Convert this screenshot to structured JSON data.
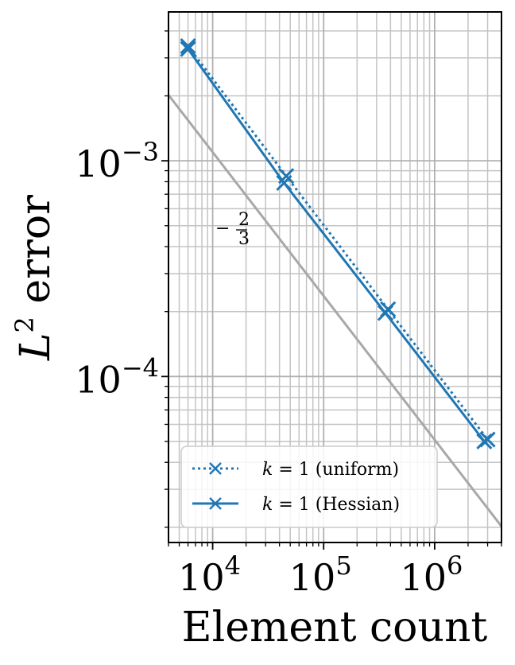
{
  "chart_data": {
    "type": "line",
    "scale": {
      "x": "log",
      "y": "log"
    },
    "xlim": [
      4000,
      4000000
    ],
    "ylim": [
      1.7e-05,
      0.0049
    ],
    "grid": "major and minor",
    "legend_position": "lower-left",
    "xlabel": {
      "base": "Element count"
    },
    "ylabel": {
      "prefix": "L",
      "superscript": "2",
      "suffix": " error"
    },
    "x_ticks": [
      {
        "value": 10000,
        "base": "10",
        "exp": "4"
      },
      {
        "value": 100000,
        "base": "10",
        "exp": "5"
      },
      {
        "value": 1000000,
        "base": "10",
        "exp": "6"
      }
    ],
    "y_ticks": [
      {
        "value": 0.001,
        "base": "10",
        "exp": "−3"
      },
      {
        "value": 0.0001,
        "base": "10",
        "exp": "−4"
      }
    ],
    "series": [
      {
        "name": "k = 1 (uniform)",
        "legend_lhs": "k",
        "legend_rhs": " = 1 (uniform)",
        "style": "dotted",
        "marker": "x",
        "color": "#1f77b4",
        "x": [
          6000,
          46000,
          380000,
          3000000
        ],
        "y": [
          0.0034,
          0.00085,
          0.000205,
          5.1e-05
        ]
      },
      {
        "name": "k = 1 (Hessian)",
        "legend_lhs": "k",
        "legend_rhs": " = 1 (Hessian)",
        "style": "solid",
        "marker": "x",
        "color": "#1f77b4",
        "x": [
          6000,
          44000,
          360000,
          2800000
        ],
        "y": [
          0.0033,
          0.00079,
          0.000197,
          5e-05
        ]
      }
    ],
    "reference_line": {
      "color": "#a8a8a8",
      "slope_num": "2",
      "slope_den": "3",
      "slope_sign": "−",
      "x": [
        4000,
        4000000
      ],
      "y": [
        0.00202,
        2.02e-05
      ]
    }
  }
}
